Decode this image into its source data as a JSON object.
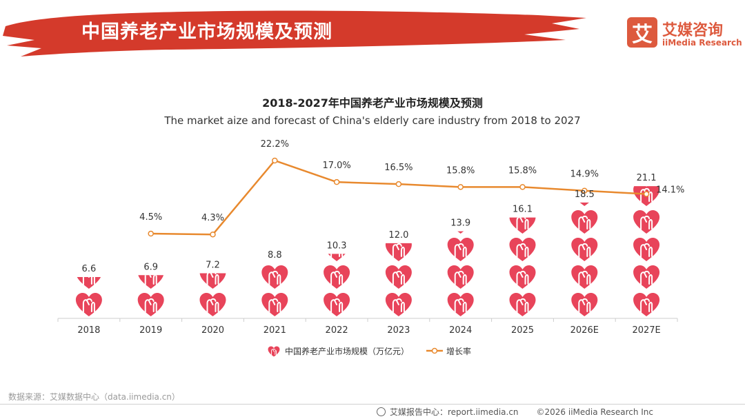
{
  "header": {
    "title": "中国养老产业市场规模及预测",
    "logo_mark": "艾",
    "logo_name": "艾媒咨询",
    "logo_en": "iiMedia Research",
    "banner_color": "#d43a2b"
  },
  "chart_data": {
    "type": "bar+line",
    "title": "2018-2027年中国养老产业市场规模及预测",
    "subtitle": "The market aize and forecast of China's elderly care industry from 2018 to 2027",
    "categories": [
      "2018",
      "2019",
      "2020",
      "2021",
      "2022",
      "2023",
      "2024",
      "2025",
      "2026E",
      "2027E"
    ],
    "series": [
      {
        "name": "中国养老产业市场规模（万亿元）",
        "type": "pictorial-bar",
        "values": [
          6.6,
          6.9,
          7.2,
          8.8,
          10.3,
          12.0,
          13.9,
          16.1,
          18.5,
          21.1
        ],
        "labels": [
          "6.6",
          "6.9",
          "7.2",
          "8.8",
          "10.3",
          "12.0",
          "13.9",
          "16.1",
          "18.5",
          "21.1"
        ],
        "color": "#e8445a"
      },
      {
        "name": "增长率",
        "type": "line",
        "values": [
          null,
          4.5,
          4.3,
          22.2,
          17.0,
          16.5,
          15.8,
          15.8,
          14.9,
          14.1
        ],
        "labels": [
          "",
          "4.5%",
          "4.3%",
          "22.2%",
          "17.0%",
          "16.5%",
          "15.8%",
          "15.8%",
          "14.9%",
          "14.1%"
        ],
        "color": "#e8892e"
      }
    ],
    "legend_position": "bottom",
    "units_per_icon": 4.4
  },
  "source": "数据来源：艾媒数据中心（data.iimedia.cn）",
  "footer": {
    "report_site": "艾媒报告中心：report.iimedia.cn",
    "copyright": "©2026  iiMedia Research  Inc"
  }
}
